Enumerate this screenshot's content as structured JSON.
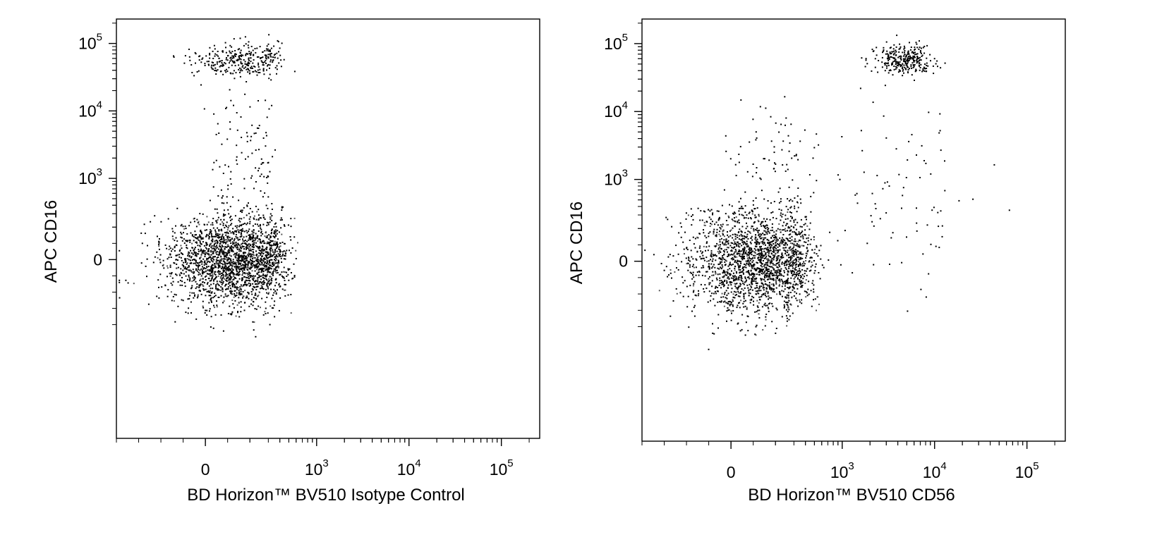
{
  "chart_data": [
    {
      "type": "scatter",
      "title": "",
      "xlabel": "BD Horizon™ BV510 Isotype Control",
      "ylabel": "APC CD16",
      "x_scale": "biexponential",
      "y_scale": "biexponential",
      "x_ticks": [
        {
          "value": 0,
          "base": "0",
          "exp": ""
        },
        {
          "value": 1000,
          "base": "10",
          "exp": "3"
        },
        {
          "value": 10000,
          "base": "10",
          "exp": "4"
        },
        {
          "value": 100000,
          "base": "10",
          "exp": "5"
        }
      ],
      "y_ticks": [
        {
          "value": 0,
          "base": "0",
          "exp": ""
        },
        {
          "value": 1000,
          "base": "10",
          "exp": "3"
        },
        {
          "value": 10000,
          "base": "10",
          "exp": "4"
        },
        {
          "value": 100000,
          "base": "10",
          "exp": "5"
        }
      ],
      "xlim": [
        -400,
        260000
      ],
      "ylim": [
        -1100,
        230000
      ],
      "grid": false,
      "populations": [
        {
          "name": "",
          "count": 2200,
          "x_center": 130,
          "x_spread": 150,
          "y_center": 0,
          "y_spread": 140,
          "density": "high"
        },
        {
          "name": "",
          "count": 320,
          "x_center": 160,
          "x_spread": 110,
          "y_center": 58000,
          "y_spread": 0.13,
          "density": "medium"
        },
        {
          "name": "",
          "count": 120,
          "x_center": 170,
          "x_spread": 90,
          "y_center": 2000,
          "y_spread": 0.55,
          "density": "low"
        }
      ]
    },
    {
      "type": "scatter",
      "title": "",
      "xlabel": "BD Horizon™ BV510 CD56",
      "ylabel": "APC CD16",
      "x_scale": "biexponential",
      "y_scale": "biexponential",
      "x_ticks": [
        {
          "value": 0,
          "base": "0",
          "exp": ""
        },
        {
          "value": 1000,
          "base": "10",
          "exp": "3"
        },
        {
          "value": 10000,
          "base": "10",
          "exp": "4"
        },
        {
          "value": 100000,
          "base": "10",
          "exp": "5"
        }
      ],
      "y_ticks": [
        {
          "value": 0,
          "base": "0",
          "exp": ""
        },
        {
          "value": 1000,
          "base": "10",
          "exp": "3"
        },
        {
          "value": 10000,
          "base": "10",
          "exp": "4"
        },
        {
          "value": 100000,
          "base": "10",
          "exp": "5"
        }
      ],
      "xlim": [
        -400,
        260000
      ],
      "ylim": [
        -1100,
        230000
      ],
      "grid": false,
      "populations": [
        {
          "name": "",
          "count": 2000,
          "x_center": 120,
          "x_spread": 160,
          "y_center": 0,
          "y_spread": 150,
          "density": "high"
        },
        {
          "name": "",
          "count": 300,
          "x_center": 4500,
          "x_spread": 0.16,
          "y_center": 58000,
          "y_spread": 0.12,
          "density": "medium"
        },
        {
          "name": "",
          "count": 110,
          "x_center": 200,
          "x_spread": 150,
          "y_center": 1200,
          "y_spread": 0.5,
          "density": "low"
        },
        {
          "name": "",
          "count": 90,
          "x_center": 4000,
          "x_spread": 0.45,
          "y_center": 600,
          "y_spread": 0.7,
          "density": "low"
        }
      ]
    }
  ]
}
